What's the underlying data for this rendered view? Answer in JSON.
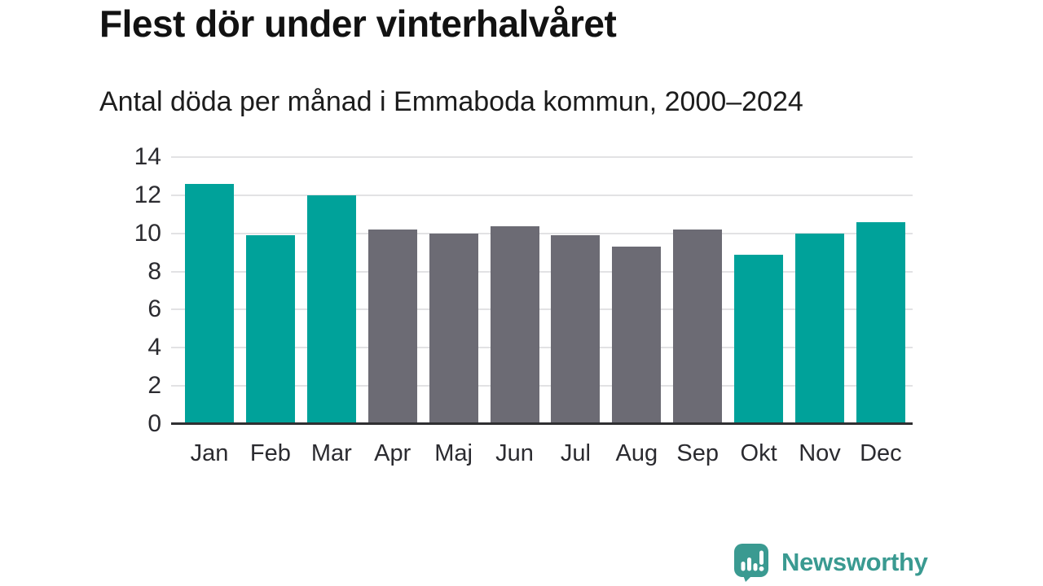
{
  "header": {
    "title": "Flest dör under vinterhalvåret",
    "subtitle": "Antal döda per månad i Emmaboda kommun, 2000–2024"
  },
  "footer": {
    "brand": "Newsworthy",
    "logo_icon": "speech-bubble-with-bar-chart-and-exclamation"
  },
  "colors": {
    "winter_bar_teal": "#00A29A",
    "summer_bar_gray": "#6C6B74",
    "gridline": "#E2E2E4",
    "axis_line": "#2F2F31",
    "title_text": "#121212",
    "axis_text": "#2B2B30",
    "brand_teal": "#3A9A91",
    "background": "#FFFFFF"
  },
  "chart_data": {
    "type": "bar",
    "title": "Flest dör under vinterhalvåret",
    "subtitle": "Antal döda per månad i Emmaboda kommun, 2000–2024",
    "categories": [
      "Jan",
      "Feb",
      "Mar",
      "Apr",
      "Maj",
      "Jun",
      "Jul",
      "Aug",
      "Sep",
      "Okt",
      "Nov",
      "Dec"
    ],
    "values": [
      12.5,
      9.8,
      11.9,
      10.1,
      9.9,
      10.3,
      9.8,
      9.2,
      10.1,
      8.8,
      9.9,
      10.5
    ],
    "bar_colors": [
      "#00A29A",
      "#00A29A",
      "#00A29A",
      "#6C6B74",
      "#6C6B74",
      "#6C6B74",
      "#6C6B74",
      "#6C6B74",
      "#6C6B74",
      "#00A29A",
      "#00A29A",
      "#00A29A"
    ],
    "xlabel": "",
    "ylabel": "",
    "ylim": [
      0,
      14
    ],
    "yticks": [
      0,
      2,
      4,
      6,
      8,
      10,
      12,
      14
    ],
    "grid": true,
    "legend": "none"
  }
}
